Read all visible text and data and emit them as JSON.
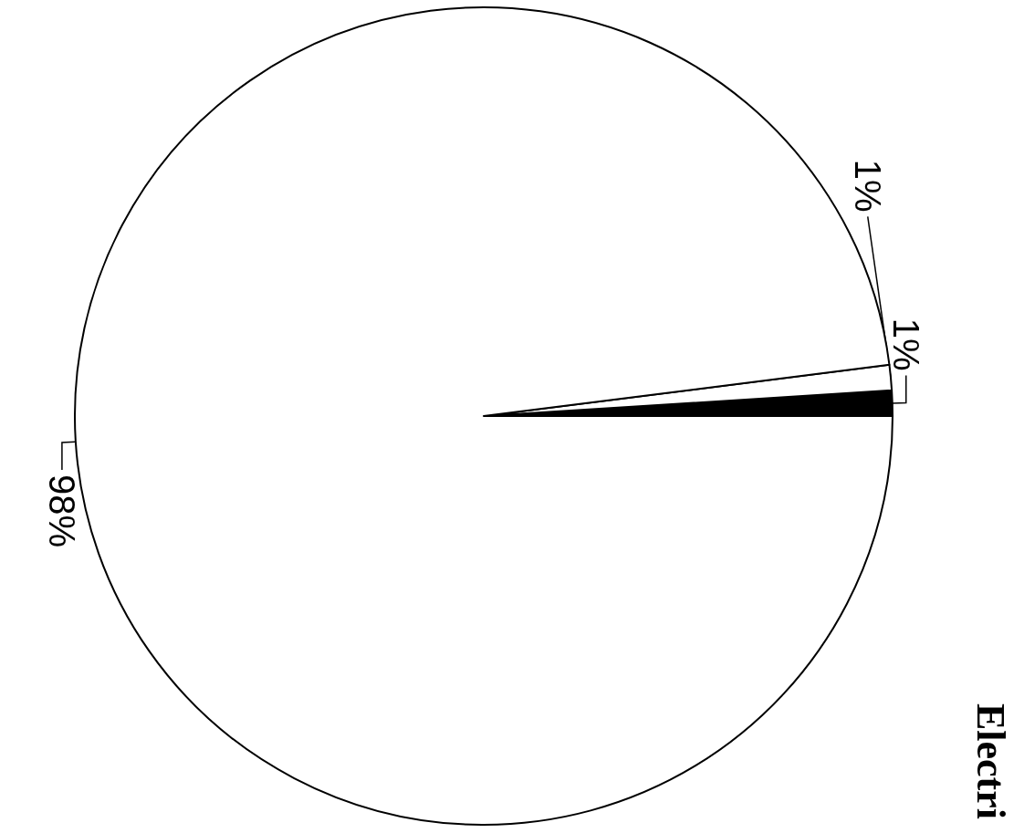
{
  "chart_data": {
    "type": "pie",
    "title": "Electri",
    "categories": [
      null,
      null,
      null
    ],
    "values": [
      1,
      1,
      98
    ],
    "colors": [
      "#000000",
      "#ffffff",
      "#ffffff"
    ],
    "value_labels": [
      "1%",
      "1%",
      "98%"
    ]
  }
}
